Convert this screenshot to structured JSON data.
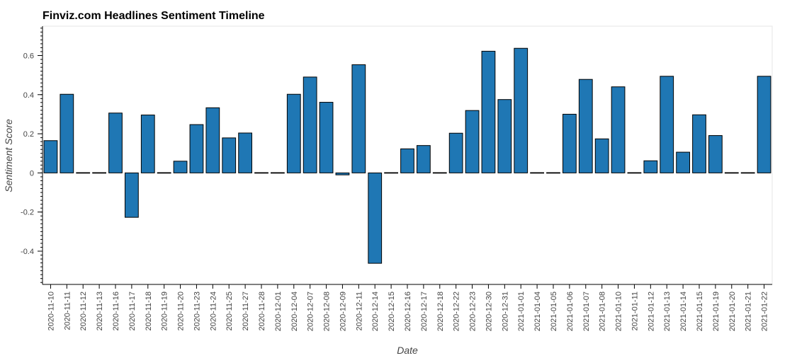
{
  "chart_data": {
    "type": "bar",
    "title": "Finviz.com Headlines Sentiment Timeline",
    "xlabel": "Date",
    "ylabel": "Sentiment Score",
    "ylim": [
      -0.57,
      0.75
    ],
    "yticks": [
      "-0.4",
      "-0.2",
      "0",
      "0.2",
      "0.4",
      "0.6"
    ],
    "grid": false,
    "bar_color": "#1f77b4",
    "edge_color": "#000000",
    "categories": [
      "2020-11-10",
      "2020-11-11",
      "2020-11-12",
      "2020-11-13",
      "2020-11-16",
      "2020-11-17",
      "2020-11-18",
      "2020-11-19",
      "2020-11-20",
      "2020-11-23",
      "2020-11-24",
      "2020-11-25",
      "2020-11-27",
      "2020-11-28",
      "2020-12-01",
      "2020-12-04",
      "2020-12-07",
      "2020-12-08",
      "2020-12-09",
      "2020-12-11",
      "2020-12-14",
      "2020-12-15",
      "2020-12-16",
      "2020-12-17",
      "2020-12-18",
      "2020-12-22",
      "2020-12-23",
      "2020-12-30",
      "2020-12-31",
      "2021-01-01",
      "2021-01-04",
      "2021-01-05",
      "2021-01-06",
      "2021-01-07",
      "2021-01-08",
      "2021-01-10",
      "2021-01-11",
      "2021-01-12",
      "2021-01-13",
      "2021-01-14",
      "2021-01-15",
      "2021-01-19",
      "2021-01-20",
      "2021-01-21",
      "2021-01-22"
    ],
    "values": [
      0.165,
      0.402,
      0,
      0,
      0.306,
      -0.227,
      0.296,
      0,
      0.06,
      0.247,
      0.333,
      0.179,
      0.204,
      0,
      0,
      0.402,
      0.49,
      0.361,
      -0.01,
      0.553,
      -0.462,
      0,
      0.123,
      0.14,
      0,
      0.203,
      0.319,
      0.622,
      0.375,
      0.637,
      0,
      0,
      0.3,
      0.478,
      0.174,
      0.44,
      0,
      0.062,
      0.494,
      0.106,
      0.297,
      0.191,
      0,
      0,
      0.494
    ]
  }
}
